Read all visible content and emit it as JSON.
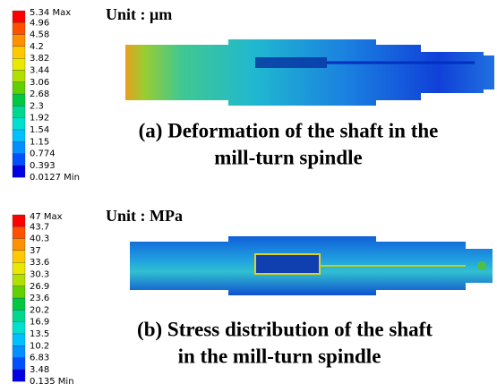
{
  "panels": [
    {
      "legend": {
        "labels": [
          "5.34 Max",
          "4.96",
          "4.58",
          "4.2",
          "3.82",
          "3.44",
          "3.06",
          "2.68",
          "2.3",
          "1.92",
          "1.54",
          "1.15",
          "0.774",
          "0.393",
          "0.0127 Min"
        ]
      },
      "unit": "Unit : μm",
      "caption_lines": [
        "(a) Deformation of the shaft in the",
        "mill-turn spindle"
      ]
    },
    {
      "legend": {
        "labels": [
          "47 Max",
          "43.7",
          "40.3",
          "37",
          "33.6",
          "30.3",
          "26.9",
          "23.6",
          "20.2",
          "16.9",
          "13.5",
          "10.2",
          "6.83",
          "3.48",
          "0.135 Min"
        ]
      },
      "unit": "Unit : MPa",
      "caption_lines": [
        "(b) Stress distribution of the shaft",
        "in the mill-turn spindle"
      ]
    }
  ]
}
